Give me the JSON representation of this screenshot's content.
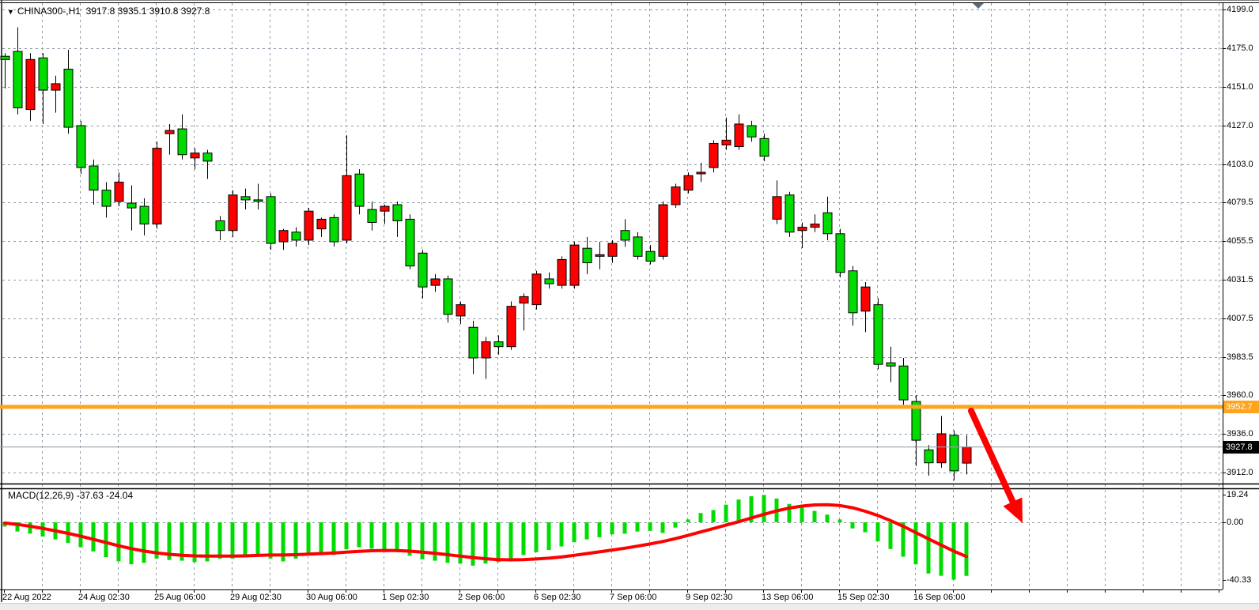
{
  "header": {
    "marker_glyph": "▼",
    "title": "CHINA300-,H1",
    "ohlc_text": "3917.8 3935.1 3910.8 3927.8"
  },
  "macd_header": {
    "name": "MACD(12,26,9)",
    "macd_value": "-37.63",
    "signal_value": "-24.04"
  },
  "price_tags": {
    "order_line": "3952.7",
    "last_price": "3927.8"
  },
  "colors": {
    "bull_candle": "#FF0000",
    "bear_candle": "#00DC00",
    "macd_histogram": "#00DC00",
    "macd_signal": "#FF0000",
    "order_line": "#FFA41C",
    "last_price_line": "#9AA4AE",
    "grid": "#8C9AAA",
    "axis": "#000000",
    "arrow": "#FF0000",
    "shift_marker": "#5A6B7D",
    "background": "#FFFFFF"
  },
  "chart_data": [
    {
      "type": "candlestick",
      "title": "CHINA300-,H1",
      "note": "Up candles are drawn red, down candles green (inverted MT4 scheme as shown).",
      "y_ticks": [
        4199.0,
        4175.0,
        4151.0,
        4127.0,
        4103.0,
        4079.5,
        4055.5,
        4031.5,
        4007.5,
        3983.5,
        3960.0,
        3936.0,
        3912.0
      ],
      "x_labels": [
        "22 Aug 2022",
        "24 Aug 02:30",
        "25 Aug 06:00",
        "29 Aug 02:30",
        "30 Aug 06:00",
        "1 Sep 02:30",
        "2 Sep 06:00",
        "6 Sep 02:30",
        "7 Sep 06:00",
        "9 Sep 02:30",
        "13 Sep 06:00",
        "15 Sep 02:30",
        "16 Sep 06:00"
      ],
      "hline": {
        "value": 3952.7,
        "label": "3952.7"
      },
      "last_price": {
        "value": 3927.8,
        "label": "3927.8"
      },
      "ohlc": [
        [
          4170.0,
          4172.0,
          4150.0,
          4168.0
        ],
        [
          4173.0,
          4188.0,
          4134.0,
          4138.0
        ],
        [
          4137.0,
          4172.0,
          4130.0,
          4168.0
        ],
        [
          4169.0,
          4172.0,
          4128.0,
          4149.0
        ],
        [
          4149.0,
          4158.0,
          4135.0,
          4153.0
        ],
        [
          4162.0,
          4174.0,
          4122.0,
          4126.0
        ],
        [
          4127.0,
          4130.0,
          4097.0,
          4101.0
        ],
        [
          4102.0,
          4106.0,
          4078.0,
          4087.0
        ],
        [
          4087.0,
          4092.0,
          4070.0,
          4077.0
        ],
        [
          4080.0,
          4098.0,
          4077.0,
          4092.0
        ],
        [
          4079.0,
          4090.0,
          4062.0,
          4076.0
        ],
        [
          4077.0,
          4082.0,
          4059.0,
          4066.0
        ],
        [
          4066.0,
          4117.0,
          4063.0,
          4113.0
        ],
        [
          4122.0,
          4128.0,
          4109.0,
          4124.0
        ],
        [
          4125.0,
          4134.0,
          4106.0,
          4109.0
        ],
        [
          4107.0,
          4113.0,
          4100.0,
          4110.0
        ],
        [
          4110.0,
          4112.0,
          4094.0,
          4105.0
        ],
        [
          4068.0,
          4071.0,
          4056.0,
          4062.0
        ],
        [
          4062.0,
          4087.0,
          4058.0,
          4084.0
        ],
        [
          4083.0,
          4088.0,
          4075.0,
          4081.0
        ],
        [
          4081.0,
          4091.0,
          4075.0,
          4080.8
        ],
        [
          4083.0,
          4085.0,
          4050.0,
          4054.0
        ],
        [
          4055.0,
          4063.0,
          4050.0,
          4062.0
        ],
        [
          4061.0,
          4064.0,
          4052.0,
          4056.0
        ],
        [
          4056.0,
          4076.0,
          4053.0,
          4074.0
        ],
        [
          4063.0,
          4070.0,
          4058.0,
          4069.0
        ],
        [
          4070.0,
          4072.0,
          4052.0,
          4055.0
        ],
        [
          4056.0,
          4121.0,
          4054.0,
          4096.0
        ],
        [
          4097.0,
          4100.0,
          4072.0,
          4077.0
        ],
        [
          4075.0,
          4080.0,
          4062.0,
          4067.0
        ],
        [
          4074.0,
          4078.0,
          4066.0,
          4077.0
        ],
        [
          4078.0,
          4080.0,
          4058.0,
          4068.0
        ],
        [
          4069.0,
          4072.0,
          4038.0,
          4040.0
        ],
        [
          4048.0,
          4050.0,
          4020.0,
          4027.0
        ],
        [
          4028.0,
          4035.0,
          4024.0,
          4032.0
        ],
        [
          4032.0,
          4034.0,
          4005.0,
          4010.0
        ],
        [
          4009.0,
          4018.0,
          4004.0,
          4016.0
        ],
        [
          4002.0,
          4006.0,
          3973.0,
          3983.0
        ],
        [
          3983.0,
          3996.0,
          3970.0,
          3993.0
        ],
        [
          3993.0,
          3997.0,
          3985.0,
          3990.0
        ],
        [
          3990.0,
          4018.0,
          3988.0,
          4015.0
        ],
        [
          4017.0,
          4023.0,
          4000.0,
          4021.0
        ],
        [
          4016.0,
          4037.0,
          4013.0,
          4035.0
        ],
        [
          4032.0,
          4036.0,
          4026.0,
          4029.0
        ],
        [
          4028.0,
          4046.0,
          4026.0,
          4044.0
        ],
        [
          4028.0,
          4055.0,
          4026.0,
          4053.0
        ],
        [
          4051.0,
          4058.0,
          4035.0,
          4042.0
        ],
        [
          4046.0,
          4055.0,
          4038.0,
          4047.0
        ],
        [
          4046.0,
          4056.0,
          4042.0,
          4054.0
        ],
        [
          4062.0,
          4069.0,
          4052.0,
          4056.0
        ],
        [
          4058.0,
          4061.0,
          4044.0,
          4046.0
        ],
        [
          4049.0,
          4053.0,
          4041.0,
          4043.0
        ],
        [
          4046.0,
          4080.0,
          4044.0,
          4078.0
        ],
        [
          4078.0,
          4091.0,
          4076.0,
          4089.0
        ],
        [
          4087.0,
          4098.0,
          4085.0,
          4096.0
        ],
        [
          4097.9,
          4104.0,
          4092.0,
          4098.1
        ],
        [
          4101.0,
          4118.0,
          4098.0,
          4116.0
        ],
        [
          4115.0,
          4132.0,
          4112.0,
          4118.0
        ],
        [
          4114.0,
          4134.0,
          4112.0,
          4128.0
        ],
        [
          4127.0,
          4130.0,
          4117.0,
          4120.0
        ],
        [
          4119.0,
          4122.0,
          4105.0,
          4108.0
        ],
        [
          4069.0,
          4093.0,
          4066.0,
          4083.0
        ],
        [
          4084.0,
          4086.0,
          4058.0,
          4061.0
        ],
        [
          4062.0,
          4067.0,
          4051.0,
          4064.0
        ],
        [
          4064.0,
          4072.0,
          4061.0,
          4066.0
        ],
        [
          4073.0,
          4083.0,
          4056.0,
          4060.0
        ],
        [
          4060.0,
          4063.0,
          4033.0,
          4036.0
        ],
        [
          4037.0,
          4040.0,
          4003.0,
          4011.0
        ],
        [
          4012.0,
          4030.0,
          3999.0,
          4027.0
        ],
        [
          4016.0,
          4020.0,
          3976.0,
          3979.0
        ],
        [
          3980.0,
          3990.0,
          3968.0,
          3978.0
        ],
        [
          3978.0,
          3983.0,
          3954.0,
          3957.0
        ],
        [
          3956.0,
          3960.0,
          3916.0,
          3932.0
        ],
        [
          3926.0,
          3929.0,
          3910.0,
          3918.0
        ],
        [
          3918.0,
          3947.0,
          3915.0,
          3936.0
        ],
        [
          3935.0,
          3938.0,
          3907.0,
          3913.0
        ],
        [
          3917.8,
          3935.1,
          3910.8,
          3927.8
        ]
      ]
    },
    {
      "type": "macd",
      "title": "MACD(12,26,9)",
      "current_macd": -37.63,
      "current_signal": -24.04,
      "y_ticks": [
        19.24,
        0.0,
        -40.33
      ],
      "histogram": [
        -3.0,
        -6.5,
        -8.0,
        -10.0,
        -12.0,
        -14.5,
        -17.5,
        -20.5,
        -24.5,
        -27.5,
        -29.5,
        -28.5,
        -25.5,
        -26.5,
        -27.0,
        -28.0,
        -27.5,
        -25.5,
        -25.5,
        -24.5,
        -24.0,
        -25.5,
        -27.5,
        -25.5,
        -23.0,
        -22.0,
        -23.0,
        -19.0,
        -17.5,
        -18.5,
        -19.5,
        -21.0,
        -23.5,
        -26.0,
        -27.0,
        -28.5,
        -29.0,
        -30.5,
        -29.0,
        -28.0,
        -25.5,
        -23.0,
        -21.0,
        -19.5,
        -17.0,
        -14.0,
        -12.0,
        -10.5,
        -8.5,
        -8.0,
        -6.5,
        -6.0,
        -7.5,
        -3.7,
        2.0,
        6.5,
        8.6,
        12.4,
        16.0,
        18.3,
        19.24,
        16.7,
        12.9,
        10.8,
        8.0,
        5.4,
        2.0,
        -4.3,
        -7.0,
        -13.4,
        -18.8,
        -24.2,
        -29.6,
        -36.0,
        -37.6,
        -40.33,
        -37.63
      ],
      "signal_line": [
        -0.5,
        -1.5,
        -2.8,
        -4.3,
        -6.0,
        -7.8,
        -9.8,
        -12.0,
        -14.2,
        -16.5,
        -18.5,
        -20.2,
        -21.5,
        -22.5,
        -23.2,
        -23.6,
        -23.8,
        -23.8,
        -23.8,
        -23.6,
        -23.3,
        -23.0,
        -23.0,
        -22.8,
        -22.4,
        -22.0,
        -21.6,
        -21.0,
        -20.4,
        -20.0,
        -19.8,
        -19.9,
        -20.3,
        -21.0,
        -21.8,
        -22.8,
        -23.8,
        -24.8,
        -25.6,
        -26.2,
        -26.4,
        -26.2,
        -25.8,
        -25.2,
        -24.4,
        -23.2,
        -22.0,
        -20.8,
        -19.5,
        -18.2,
        -16.8,
        -15.2,
        -13.5,
        -11.5,
        -9.2,
        -6.8,
        -4.4,
        -2.0,
        0.4,
        3.0,
        5.6,
        8.0,
        10.0,
        11.4,
        12.2,
        12.4,
        11.8,
        10.2,
        7.8,
        4.8,
        1.2,
        -2.8,
        -7.2,
        -11.6,
        -16.0,
        -20.2,
        -24.04
      ]
    }
  ],
  "annotations": {
    "down_arrow": {
      "shape": "arrow",
      "direction": "down-right",
      "color": "#FF0000"
    },
    "chart_shift_marker": {
      "glyph": "▼"
    }
  }
}
